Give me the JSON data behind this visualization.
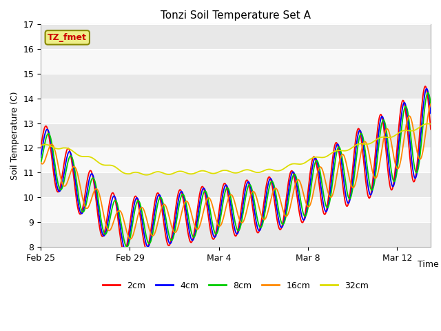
{
  "title": "Tonzi Soil Temperature Set A",
  "ylabel": "Soil Temperature (C)",
  "xlabel": "Time",
  "ylim": [
    8.0,
    17.0
  ],
  "yticks": [
    8.0,
    9.0,
    10.0,
    11.0,
    12.0,
    13.0,
    14.0,
    15.0,
    16.0,
    17.0
  ],
  "xtick_labels": [
    "Feb 25",
    "Feb 29",
    "Mar 4",
    "Mar 8",
    "Mar 12"
  ],
  "xtick_positions": [
    0,
    4,
    8,
    12,
    16
  ],
  "xlim": [
    0,
    17.5
  ],
  "label_tag": "TZ_fmet",
  "label_tag_bg": "#eeee88",
  "label_tag_edge": "#888800",
  "label_tag_text_color": "#cc0000",
  "fig_bg": "#ffffff",
  "plot_bg": "#f0f0f0",
  "band_colors": [
    "#e8e8e8",
    "#f8f8f8"
  ],
  "line_colors": {
    "2cm": "#ff0000",
    "4cm": "#0000ff",
    "8cm": "#00cc00",
    "16cm": "#ff8800",
    "32cm": "#dddd00"
  },
  "legend_labels": [
    "2cm",
    "4cm",
    "8cm",
    "16cm",
    "32cm"
  ]
}
